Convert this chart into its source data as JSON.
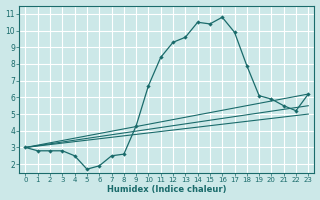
{
  "xlabel": "Humidex (Indice chaleur)",
  "ylabel": "",
  "bg_color": "#cce8e8",
  "grid_color": "#ffffff",
  "line_color": "#1a6b6b",
  "xlim": [
    -0.5,
    23.5
  ],
  "ylim": [
    1.5,
    11.5
  ],
  "xticks": [
    0,
    1,
    2,
    3,
    4,
    5,
    6,
    7,
    8,
    9,
    10,
    11,
    12,
    13,
    14,
    15,
    16,
    17,
    18,
    19,
    20,
    21,
    22,
    23
  ],
  "yticks": [
    2,
    3,
    4,
    5,
    6,
    7,
    8,
    9,
    10,
    11
  ],
  "line1_x": [
    0,
    1,
    2,
    3,
    4,
    5,
    6,
    7,
    8,
    9,
    10,
    11,
    12,
    13,
    14,
    15,
    16,
    17,
    18,
    19,
    20,
    21,
    22,
    23
  ],
  "line1_y": [
    3.0,
    2.8,
    2.8,
    2.8,
    2.5,
    1.7,
    1.9,
    2.5,
    2.6,
    4.3,
    6.7,
    8.4,
    9.3,
    9.6,
    10.5,
    10.4,
    10.8,
    9.9,
    7.9,
    6.1,
    5.9,
    5.5,
    5.2,
    6.2
  ],
  "line2_x": [
    0,
    23
  ],
  "line2_y": [
    3.0,
    6.2
  ],
  "line3_x": [
    0,
    23
  ],
  "line3_y": [
    3.0,
    5.5
  ],
  "line4_x": [
    0,
    23
  ],
  "line4_y": [
    3.0,
    5.0
  ],
  "fontsize_tick": 5,
  "fontsize_xlabel": 6
}
